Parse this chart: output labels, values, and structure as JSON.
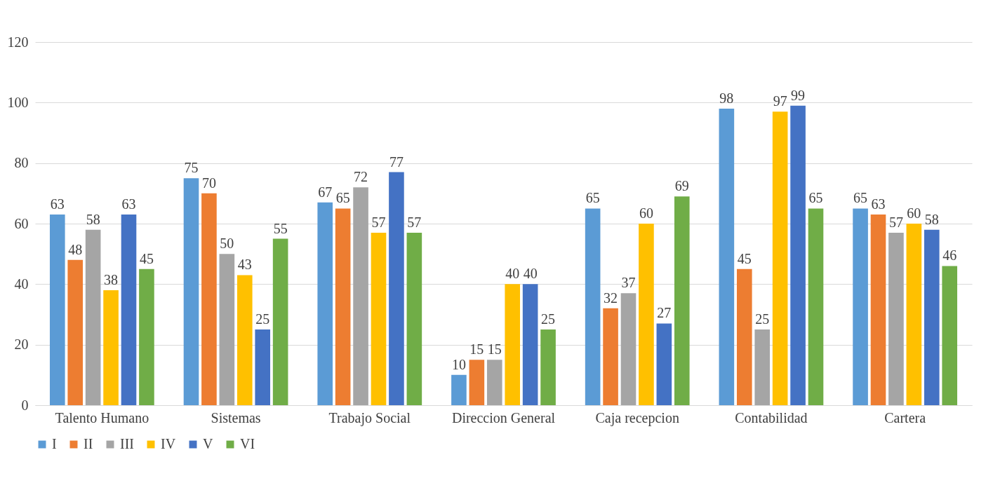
{
  "chart_data": {
    "type": "bar",
    "categories": [
      "Talento Humano",
      "Sistemas",
      "Trabajo Social",
      "Direccion General",
      "Caja recepcion",
      "Contabilidad",
      "Cartera"
    ],
    "series": [
      {
        "name": "I",
        "color": "#5b9bd5",
        "values": [
          63,
          75,
          67,
          10,
          65,
          98,
          65
        ]
      },
      {
        "name": "II",
        "color": "#ed7d31",
        "values": [
          48,
          70,
          65,
          15,
          32,
          45,
          63
        ]
      },
      {
        "name": "III",
        "color": "#a5a5a5",
        "values": [
          58,
          50,
          72,
          15,
          37,
          25,
          57
        ]
      },
      {
        "name": "IV",
        "color": "#ffc000",
        "values": [
          38,
          43,
          57,
          40,
          60,
          97,
          60
        ]
      },
      {
        "name": "V",
        "color": "#4472c4",
        "values": [
          63,
          25,
          77,
          40,
          27,
          99,
          58
        ]
      },
      {
        "name": "VI",
        "color": "#70ad47",
        "values": [
          45,
          55,
          57,
          25,
          69,
          65,
          46
        ]
      }
    ],
    "ylim": [
      0,
      120
    ],
    "yticks": [
      0,
      20,
      40,
      60,
      80,
      100,
      120
    ],
    "grid": "y",
    "legend": "bottom",
    "data_labels": true
  }
}
